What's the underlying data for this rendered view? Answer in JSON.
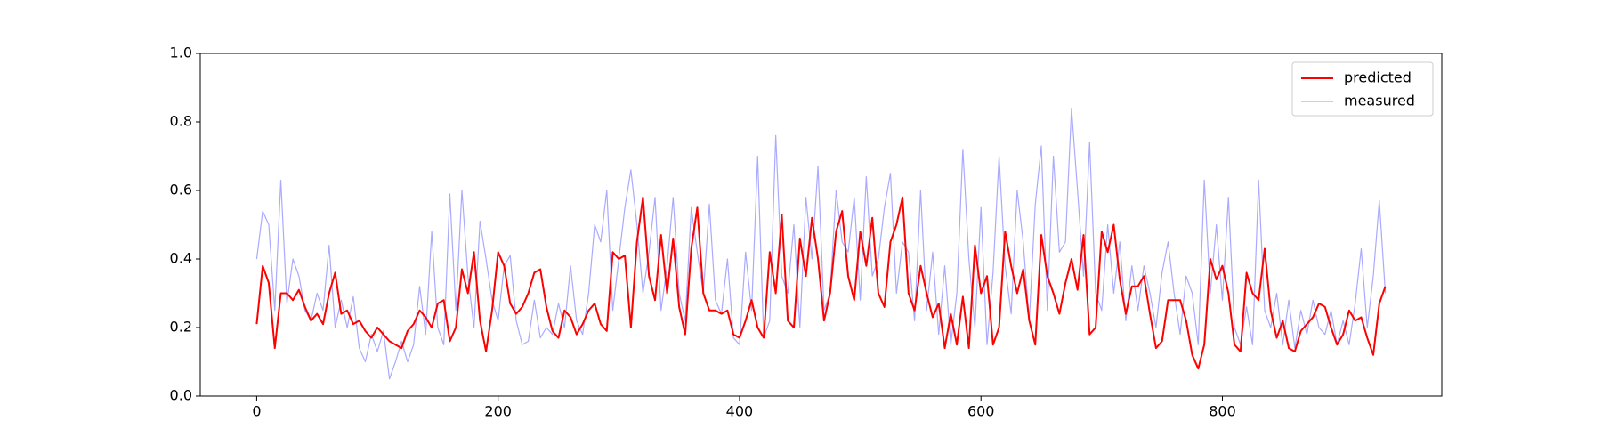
{
  "chart_data": {
    "type": "line",
    "x": [
      0,
      5,
      10,
      15,
      20,
      25,
      30,
      35,
      40,
      45,
      50,
      55,
      60,
      65,
      70,
      75,
      80,
      85,
      90,
      95,
      100,
      105,
      110,
      115,
      120,
      125,
      130,
      135,
      140,
      145,
      150,
      155,
      160,
      165,
      170,
      175,
      180,
      185,
      190,
      195,
      200,
      205,
      210,
      215,
      220,
      225,
      230,
      235,
      240,
      245,
      250,
      255,
      260,
      265,
      270,
      275,
      280,
      285,
      290,
      295,
      300,
      305,
      310,
      315,
      320,
      325,
      330,
      335,
      340,
      345,
      350,
      355,
      360,
      365,
      370,
      375,
      380,
      385,
      390,
      395,
      400,
      405,
      410,
      415,
      420,
      425,
      430,
      435,
      440,
      445,
      450,
      455,
      460,
      465,
      470,
      475,
      480,
      485,
      490,
      495,
      500,
      505,
      510,
      515,
      520,
      525,
      530,
      535,
      540,
      545,
      550,
      555,
      560,
      565,
      570,
      575,
      580,
      585,
      590,
      595,
      600,
      605,
      610,
      615,
      620,
      625,
      630,
      635,
      640,
      645,
      650,
      655,
      660,
      665,
      670,
      675,
      680,
      685,
      690,
      695,
      700,
      705,
      710,
      715,
      720,
      725,
      730,
      735,
      740,
      745,
      750,
      755,
      760,
      765,
      770,
      775,
      780,
      785,
      790,
      795,
      800,
      805,
      810,
      815,
      820,
      825,
      830,
      835,
      840,
      845,
      850,
      855,
      860,
      865,
      870,
      875,
      880,
      885,
      890,
      895,
      900,
      905,
      910,
      915,
      920,
      925,
      930,
      935
    ],
    "series": [
      {
        "name": "predicted",
        "color": "#ff0000",
        "values": [
          0.21,
          0.38,
          0.33,
          0.14,
          0.3,
          0.3,
          0.28,
          0.31,
          0.26,
          0.22,
          0.24,
          0.21,
          0.3,
          0.36,
          0.24,
          0.25,
          0.21,
          0.22,
          0.19,
          0.17,
          0.2,
          0.18,
          0.16,
          0.15,
          0.14,
          0.19,
          0.21,
          0.25,
          0.23,
          0.2,
          0.27,
          0.28,
          0.16,
          0.2,
          0.37,
          0.3,
          0.42,
          0.22,
          0.13,
          0.25,
          0.42,
          0.38,
          0.27,
          0.24,
          0.26,
          0.3,
          0.36,
          0.37,
          0.26,
          0.19,
          0.17,
          0.25,
          0.23,
          0.18,
          0.21,
          0.25,
          0.27,
          0.21,
          0.19,
          0.42,
          0.4,
          0.41,
          0.2,
          0.45,
          0.58,
          0.35,
          0.28,
          0.47,
          0.3,
          0.46,
          0.26,
          0.18,
          0.43,
          0.55,
          0.3,
          0.25,
          0.25,
          0.24,
          0.25,
          0.18,
          0.17,
          0.22,
          0.28,
          0.2,
          0.17,
          0.42,
          0.3,
          0.53,
          0.22,
          0.2,
          0.46,
          0.35,
          0.52,
          0.4,
          0.22,
          0.3,
          0.48,
          0.54,
          0.35,
          0.28,
          0.48,
          0.38,
          0.52,
          0.3,
          0.26,
          0.45,
          0.5,
          0.58,
          0.3,
          0.25,
          0.38,
          0.3,
          0.23,
          0.27,
          0.14,
          0.24,
          0.15,
          0.29,
          0.14,
          0.44,
          0.3,
          0.35,
          0.15,
          0.2,
          0.48,
          0.38,
          0.3,
          0.37,
          0.22,
          0.15,
          0.47,
          0.35,
          0.3,
          0.24,
          0.33,
          0.4,
          0.31,
          0.47,
          0.18,
          0.2,
          0.48,
          0.42,
          0.5,
          0.34,
          0.24,
          0.32,
          0.32,
          0.35,
          0.24,
          0.14,
          0.16,
          0.28,
          0.28,
          0.28,
          0.22,
          0.12,
          0.08,
          0.15,
          0.4,
          0.34,
          0.38,
          0.3,
          0.15,
          0.13,
          0.36,
          0.3,
          0.28,
          0.43,
          0.25,
          0.17,
          0.22,
          0.14,
          0.13,
          0.19,
          0.21,
          0.23,
          0.27,
          0.26,
          0.2,
          0.15,
          0.18,
          0.25,
          0.22,
          0.23,
          0.17,
          0.12,
          0.27,
          0.32
        ]
      },
      {
        "name": "measured",
        "color": "#aaaaff",
        "values": [
          0.4,
          0.54,
          0.5,
          0.25,
          0.63,
          0.27,
          0.4,
          0.35,
          0.25,
          0.22,
          0.3,
          0.25,
          0.44,
          0.2,
          0.28,
          0.2,
          0.29,
          0.14,
          0.1,
          0.18,
          0.13,
          0.19,
          0.05,
          0.1,
          0.16,
          0.1,
          0.15,
          0.32,
          0.18,
          0.48,
          0.2,
          0.15,
          0.59,
          0.25,
          0.6,
          0.35,
          0.2,
          0.51,
          0.4,
          0.28,
          0.22,
          0.38,
          0.41,
          0.22,
          0.15,
          0.16,
          0.28,
          0.17,
          0.2,
          0.18,
          0.27,
          0.2,
          0.38,
          0.22,
          0.18,
          0.3,
          0.5,
          0.45,
          0.6,
          0.25,
          0.4,
          0.55,
          0.66,
          0.5,
          0.3,
          0.42,
          0.58,
          0.25,
          0.38,
          0.58,
          0.3,
          0.22,
          0.55,
          0.42,
          0.3,
          0.56,
          0.28,
          0.24,
          0.4,
          0.17,
          0.15,
          0.42,
          0.25,
          0.7,
          0.17,
          0.22,
          0.76,
          0.35,
          0.3,
          0.5,
          0.2,
          0.58,
          0.4,
          0.67,
          0.25,
          0.3,
          0.6,
          0.45,
          0.42,
          0.58,
          0.28,
          0.64,
          0.35,
          0.4,
          0.55,
          0.65,
          0.3,
          0.45,
          0.42,
          0.22,
          0.6,
          0.25,
          0.42,
          0.18,
          0.38,
          0.15,
          0.3,
          0.72,
          0.4,
          0.2,
          0.55,
          0.15,
          0.36,
          0.7,
          0.38,
          0.24,
          0.6,
          0.45,
          0.22,
          0.56,
          0.73,
          0.25,
          0.7,
          0.42,
          0.45,
          0.84,
          0.6,
          0.35,
          0.74,
          0.3,
          0.25,
          0.5,
          0.3,
          0.45,
          0.22,
          0.38,
          0.25,
          0.38,
          0.3,
          0.2,
          0.36,
          0.45,
          0.3,
          0.18,
          0.35,
          0.3,
          0.15,
          0.63,
          0.3,
          0.5,
          0.28,
          0.58,
          0.2,
          0.15,
          0.26,
          0.15,
          0.63,
          0.25,
          0.2,
          0.3,
          0.15,
          0.28,
          0.14,
          0.25,
          0.18,
          0.28,
          0.2,
          0.18,
          0.25,
          0.15,
          0.22,
          0.15,
          0.27,
          0.43,
          0.2,
          0.35,
          0.57,
          0.3
        ]
      }
    ],
    "xlim": [
      -46.75,
      981.75
    ],
    "xticks": [
      0,
      200,
      400,
      600,
      800
    ],
    "ylim": [
      0,
      1
    ],
    "yticks": [
      {
        "value": 0,
        "label": "0.0"
      },
      {
        "value": 0.2,
        "label": "0.2"
      },
      {
        "value": 0.4,
        "label": "0.4"
      },
      {
        "value": 0.6,
        "label": "0.6"
      },
      {
        "value": 0.8,
        "label": "0.8"
      },
      {
        "value": 1,
        "label": "1.0"
      }
    ],
    "grid": false,
    "legend": "upper-right"
  }
}
